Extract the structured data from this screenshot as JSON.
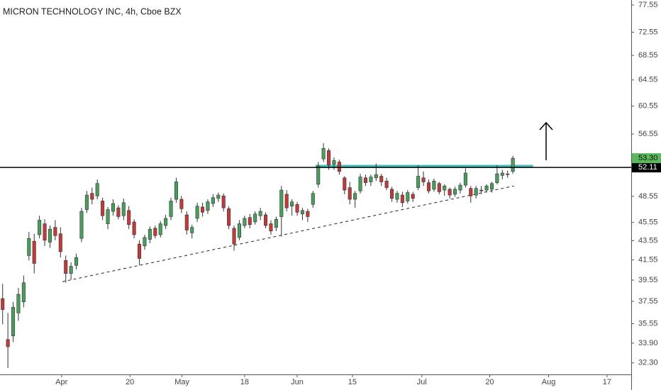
{
  "chart_data": {
    "type": "candlestick",
    "title": "MICRON TECHNOLOGY INC, 4h, Cboe BZX",
    "log_scale": true,
    "grid": false,
    "up_color": "#4a9e5c",
    "down_color": "#c23b3b",
    "ylim": [
      31.4,
      78.5
    ],
    "yticks": [
      77.55,
      72.55,
      68.55,
      64.55,
      60.55,
      56.55,
      48.55,
      45.55,
      43.55,
      41.55,
      39.55,
      37.55,
      35.55,
      {
        "value": 33.9,
        "label": "33.90"
      },
      {
        "value": 32.3,
        "label": "32.30"
      }
    ],
    "xlim": [
      0,
      120
    ],
    "xticks": [
      {
        "value": 11.7,
        "label": "Apr"
      },
      {
        "value": 24.7,
        "label": "20"
      },
      {
        "value": 34.6,
        "label": "May"
      },
      {
        "value": 46.5,
        "label": "18"
      },
      {
        "value": 56.5,
        "label": "Jun"
      },
      {
        "value": 67,
        "label": "15"
      },
      {
        "value": 80.2,
        "label": "Jul"
      },
      {
        "value": 93.1,
        "label": "20"
      },
      {
        "value": 104.3,
        "label": "Aug"
      },
      {
        "value": 115.4,
        "label": "17"
      }
    ],
    "open": [
      37.8,
      34.2,
      34.5,
      36.5,
      37.5,
      42.0,
      43.5,
      44.2,
      45.4,
      43.4,
      45.0,
      44.3,
      41.5,
      40.2,
      41.0,
      43.8,
      47.0,
      48.9,
      48.6,
      48.0,
      45.4,
      46.8,
      47.2,
      46.3,
      46.9,
      45.6,
      43.2,
      43.0,
      43.7,
      44.9,
      44.2,
      45.2,
      46.2,
      48.2,
      48.2,
      46.4,
      44.4,
      46.0,
      47.3,
      46.9,
      47.7,
      48.3,
      48.6,
      47.1,
      44.9,
      43.9,
      45.2,
      46.1,
      45.6,
      46.3,
      46.4,
      45.4,
      45.0,
      46.2,
      48.8,
      47.4,
      47.6,
      46.5,
      46.8,
      47.6,
      50.0,
      53.2,
      54.3,
      52.5,
      52.8,
      50.8,
      49.6,
      48.2,
      49.2,
      50.8,
      50.3,
      50.8,
      51.0,
      50.4,
      49.4,
      48.2,
      48.7,
      48.0,
      48.8,
      49.6,
      50.8,
      50.2,
      49.4,
      50.1,
      49.3,
      49.4,
      48.8,
      49.3,
      49.9,
      49.5,
      48.7,
      49.3,
      49.3,
      49.4,
      50.2,
      51.1,
      51.3,
      51.6
    ],
    "high": [
      39.2,
      36.5,
      37.5,
      38.8,
      40.0,
      44.5,
      44.3,
      46.3,
      45.9,
      45.2,
      45.8,
      45.0,
      42.0,
      41.3,
      42.2,
      47.2,
      49.2,
      49.6,
      50.6,
      48.4,
      47.3,
      48.2,
      47.5,
      48.3,
      47.4,
      45.9,
      43.6,
      44.2,
      45.1,
      45.2,
      45.7,
      46.4,
      48.4,
      50.8,
      48.6,
      46.8,
      45.3,
      47.8,
      47.8,
      48.2,
      48.8,
      49.0,
      48.9,
      47.4,
      45.2,
      45.8,
      46.3,
      46.5,
      46.8,
      47.2,
      46.7,
      45.8,
      46.2,
      49.8,
      49.3,
      48.2,
      47.9,
      47.2,
      47.1,
      49.2,
      52.8,
      55.3,
      54.6,
      53.4,
      53.1,
      51.0,
      50.3,
      49.2,
      51.3,
      51.2,
      51.2,
      52.6,
      51.3,
      50.8,
      49.7,
      49.2,
      49.1,
      49.3,
      49.1,
      52.4,
      51.6,
      50.6,
      50.7,
      50.3,
      50.0,
      49.6,
      49.7,
      50.2,
      52.0,
      49.8,
      49.8,
      49.8,
      50.0,
      50.3,
      52.4,
      51.8,
      51.7,
      53.6
    ],
    "low": [
      35.5,
      31.9,
      34.0,
      35.8,
      37.0,
      41.5,
      40.2,
      43.8,
      43.0,
      42.8,
      43.6,
      41.8,
      39.3,
      39.6,
      40.6,
      43.4,
      46.6,
      47.6,
      48.2,
      45.8,
      44.8,
      46.3,
      45.9,
      45.8,
      44.8,
      43.8,
      41.0,
      42.6,
      43.3,
      43.8,
      43.9,
      44.8,
      45.8,
      47.8,
      46.6,
      44.2,
      43.8,
      45.6,
      46.2,
      46.5,
      47.3,
      47.9,
      46.8,
      44.8,
      42.5,
      43.6,
      44.9,
      44.9,
      45.3,
      45.8,
      44.9,
      44.2,
      44.6,
      44.0,
      46.8,
      46.3,
      46.3,
      45.8,
      45.6,
      47.2,
      49.6,
      52.8,
      51.8,
      51.8,
      51.2,
      48.8,
      47.6,
      47.2,
      48.9,
      49.8,
      49.8,
      50.4,
      49.8,
      49.3,
      47.9,
      47.8,
      47.3,
      47.7,
      47.9,
      49.3,
      49.8,
      48.9,
      49.1,
      48.8,
      48.6,
      48.3,
      48.5,
      48.9,
      49.6,
      47.8,
      48.3,
      48.8,
      49.0,
      49.0,
      50.0,
      50.6,
      50.8,
      51.3
    ],
    "close": [
      36.8,
      33.6,
      37.0,
      38.2,
      39.3,
      43.8,
      41.2,
      45.8,
      43.6,
      44.8,
      44.1,
      42.4,
      40.2,
      40.9,
      41.8,
      46.8,
      48.7,
      48.2,
      50.1,
      46.3,
      47.0,
      47.7,
      46.2,
      47.8,
      45.3,
      44.2,
      41.7,
      43.9,
      44.8,
      44.1,
      45.4,
      46.0,
      48.0,
      50.3,
      47.1,
      44.7,
      45.0,
      47.4,
      46.7,
      47.9,
      48.4,
      48.7,
      47.2,
      45.2,
      43.2,
      45.4,
      46.0,
      45.3,
      46.5,
      46.8,
      45.2,
      44.6,
      45.9,
      49.3,
      47.2,
      47.9,
      46.7,
      46.9,
      46.2,
      48.9,
      52.3,
      54.6,
      52.4,
      53.0,
      51.6,
      49.3,
      48.2,
      48.9,
      50.9,
      50.2,
      50.9,
      51.2,
      50.3,
      49.6,
      48.3,
      48.9,
      47.8,
      49.0,
      48.3,
      51.0,
      50.3,
      49.2,
      50.4,
      49.1,
      49.8,
      48.7,
      49.4,
      49.9,
      51.4,
      48.6,
      49.5,
      49.2,
      49.8,
      50.1,
      51.3,
      51.4,
      51.2,
      53.3
    ],
    "price_line": {
      "value": 52.11,
      "color": "#000000"
    },
    "last_price": {
      "value": 53.3,
      "label": "53.30",
      "color": "#5cb85c"
    },
    "resistance": {
      "x": [
        60,
        101.35
      ],
      "y": 52.3,
      "color": "#26b3b3"
    },
    "trendline": {
      "x": [
        11.86,
        97.7
      ],
      "y": [
        39.4,
        49.8
      ]
    }
  }
}
